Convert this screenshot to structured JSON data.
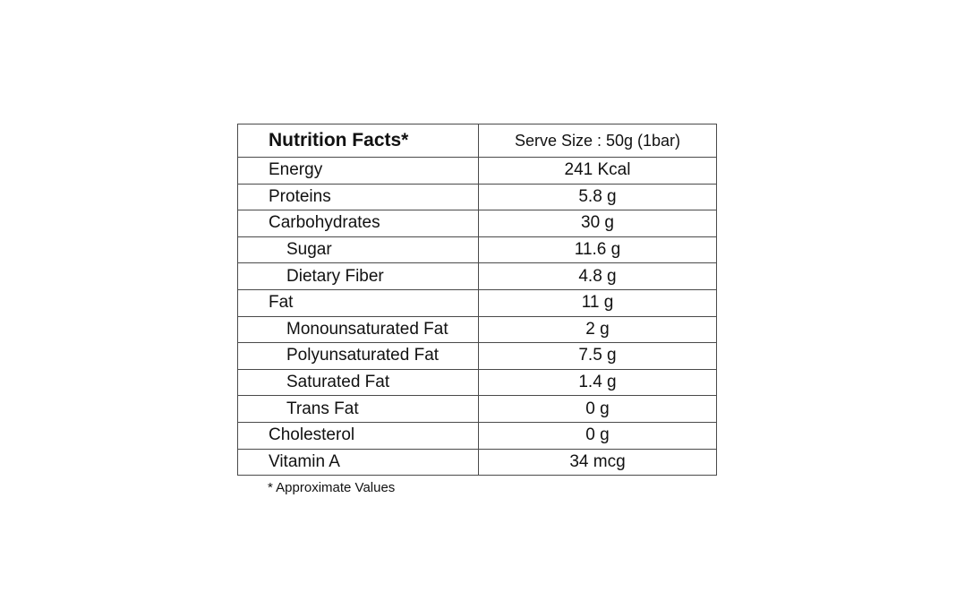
{
  "header": {
    "title": "Nutrition Facts*",
    "serve_size": "Serve Size : 50g (1bar)"
  },
  "rows": [
    {
      "name": "Energy",
      "value": "241 Kcal",
      "indent": false
    },
    {
      "name": "Proteins",
      "value": "5.8 g",
      "indent": false
    },
    {
      "name": "Carbohydrates",
      "value": "30 g",
      "indent": false
    },
    {
      "name": "Sugar",
      "value": "11.6 g",
      "indent": true
    },
    {
      "name": "Dietary Fiber",
      "value": "4.8 g",
      "indent": true
    },
    {
      "name": "Fat",
      "value": "11 g",
      "indent": false
    },
    {
      "name": "Monounsaturated Fat",
      "value": "2 g",
      "indent": true
    },
    {
      "name": "Polyunsaturated Fat",
      "value": "7.5 g",
      "indent": true
    },
    {
      "name": "Saturated Fat",
      "value": "1.4 g",
      "indent": true
    },
    {
      "name": "Trans Fat",
      "value": "0 g",
      "indent": true
    },
    {
      "name": "Cholesterol",
      "value": "0 g",
      "indent": false
    },
    {
      "name": "Vitamin A",
      "value": "34 mcg",
      "indent": false
    }
  ],
  "footnote": "* Approximate Values"
}
